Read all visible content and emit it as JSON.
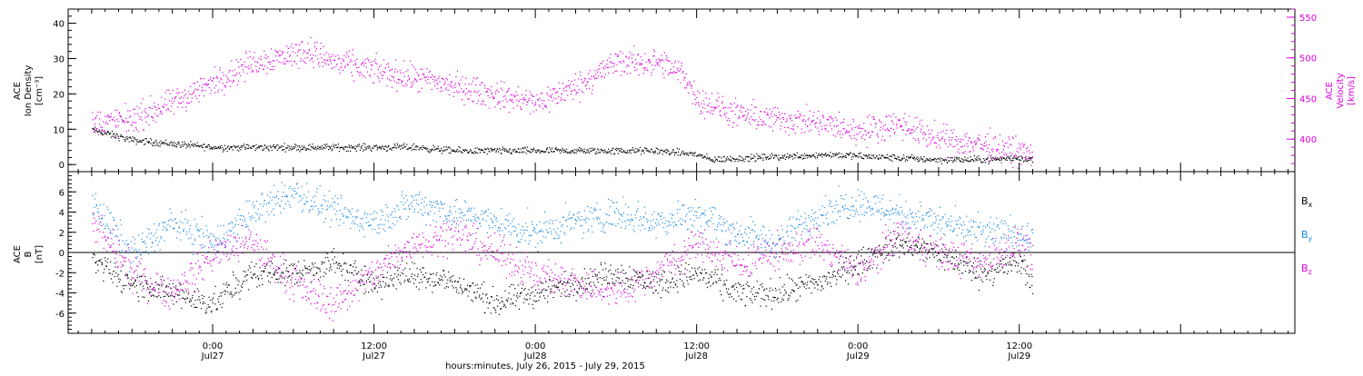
{
  "chart_data": [
    {
      "type": "scatter",
      "panel": "top",
      "ylabel": [
        "ACE",
        "Ion Density",
        "[cm⁻³]"
      ],
      "ylabel_right": [
        "ACE",
        "Velocity",
        "[km/s]"
      ],
      "ylim": [
        -2,
        44
      ],
      "ylim_right": [
        360,
        560
      ],
      "yticks": [
        0,
        10,
        20,
        30,
        40
      ],
      "yticks_right": [
        400,
        450,
        500,
        550
      ],
      "series": [
        {
          "name": "",
          "color": "#000000",
          "axis": "left",
          "x": [
            -9,
            -6,
            -3,
            0,
            3,
            6,
            9,
            12,
            15,
            18,
            21,
            24,
            27,
            30,
            33,
            36,
            37,
            40,
            43,
            46,
            48,
            51,
            54,
            57,
            60,
            61
          ],
          "y": [
            10,
            7,
            6,
            5,
            5,
            5,
            5,
            5,
            5,
            4,
            4,
            4,
            4,
            4,
            4,
            3,
            1.5,
            2,
            2.5,
            3,
            2.5,
            2,
            1.5,
            1.5,
            2,
            1.5
          ]
        },
        {
          "name": "",
          "color": "#dd00dd",
          "axis": "right",
          "x": [
            -9,
            -6,
            -3,
            0,
            3,
            6,
            7,
            9,
            12,
            15,
            17,
            18,
            21,
            24,
            27,
            30,
            33,
            35,
            36,
            39,
            42,
            45,
            48,
            51,
            54,
            57,
            60,
            61
          ],
          "y": [
            420,
            425,
            445,
            470,
            495,
            505,
            510,
            495,
            485,
            475,
            470,
            465,
            455,
            445,
            465,
            495,
            495,
            480,
            450,
            430,
            425,
            420,
            410,
            420,
            400,
            395,
            385,
            380
          ]
        }
      ]
    },
    {
      "type": "scatter",
      "panel": "bottom",
      "ylabel": [
        "ACE",
        "B",
        "[nT]"
      ],
      "ylim": [
        -8,
        8
      ],
      "yticks": [
        -6,
        -4,
        -2,
        0,
        2,
        4,
        6
      ],
      "legend_position": "right",
      "series": [
        {
          "name": "Bx",
          "color": "#000000",
          "x": [
            -9,
            -6,
            -3,
            0,
            3,
            6,
            9,
            12,
            15,
            18,
            21,
            24,
            27,
            30,
            33,
            36,
            39,
            42,
            45,
            48,
            51,
            54,
            57,
            60,
            61
          ],
          "y": [
            -1,
            -3,
            -4,
            -5,
            -2,
            -2,
            -1,
            -3,
            -2,
            -3,
            -5,
            -4,
            -3,
            -2,
            -3,
            -2,
            -4,
            -4,
            -3,
            -1,
            1,
            0,
            -2,
            -1,
            -3
          ]
        },
        {
          "name": "By",
          "color": "#1a8ae6",
          "x": [
            -9,
            -6,
            -3,
            0,
            3,
            6,
            9,
            12,
            15,
            18,
            21,
            24,
            27,
            30,
            33,
            36,
            39,
            42,
            45,
            48,
            51,
            54,
            57,
            60,
            61
          ],
          "y": [
            5,
            0,
            3,
            1,
            4,
            6,
            4,
            3,
            5,
            4,
            3,
            2,
            3,
            4,
            3,
            4,
            2,
            1,
            4,
            5,
            4,
            3,
            2,
            2,
            1
          ]
        },
        {
          "name": "Bz",
          "color": "#dd00dd",
          "x": [
            -9,
            -6,
            -3,
            0,
            3,
            6,
            9,
            12,
            15,
            18,
            21,
            24,
            27,
            30,
            33,
            36,
            39,
            42,
            45,
            48,
            51,
            54,
            57,
            60,
            61
          ],
          "y": [
            3,
            -2,
            -4,
            0,
            1,
            -3,
            -5,
            -2,
            1,
            2,
            0,
            -2,
            -3,
            -4,
            -2,
            1,
            -1,
            0,
            1,
            -2,
            2,
            0,
            -1,
            1,
            0
          ]
        }
      ],
      "legend": [
        {
          "label": "B",
          "sub": "x",
          "color": "#000000"
        },
        {
          "label": "B",
          "sub": "y",
          "color": "#1a8ae6"
        },
        {
          "label": "B",
          "sub": "z",
          "color": "#dd00dd"
        }
      ]
    }
  ],
  "x_axis": {
    "xlim": [
      -10.75,
      80.5
    ],
    "xlabel": "hours:minutes, July 26, 2015 - July 29, 2015",
    "ticks": [
      {
        "x": 0,
        "time": "0:00",
        "date": "Jul27"
      },
      {
        "x": 12,
        "time": "12:00",
        "date": "Jul27"
      },
      {
        "x": 24,
        "time": "0:00",
        "date": "Jul28"
      },
      {
        "x": 36,
        "time": "12:00",
        "date": "Jul28"
      },
      {
        "x": 48,
        "time": "0:00",
        "date": "Jul29"
      },
      {
        "x": 60,
        "time": "12:00",
        "date": "Jul29"
      }
    ]
  },
  "colors": {
    "axis": "#000000",
    "magenta": "#dd00dd",
    "blue": "#1a8ae6"
  }
}
